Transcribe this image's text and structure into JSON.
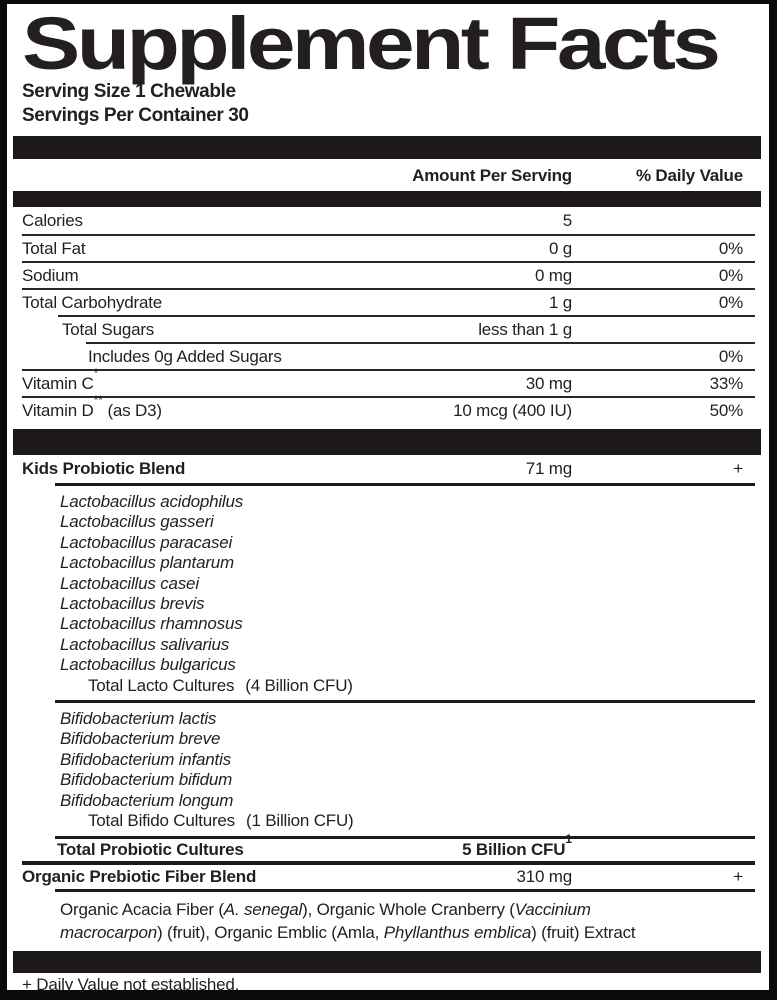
{
  "title": "Supplement Facts",
  "serving": {
    "size": "Serving Size 1 Chewable",
    "per_container": "Servings Per Container 30"
  },
  "columns": {
    "amount": "Amount Per Serving",
    "dv": "% Daily Value"
  },
  "nutrients": [
    {
      "name": "Calories",
      "amount": "5",
      "dv": "",
      "sep": "none",
      "indent": 0
    },
    {
      "name": "Total Fat",
      "amount": "0 g",
      "dv": "0%",
      "sep": "full",
      "indent": 0
    },
    {
      "name": "Sodium",
      "amount": "0 mg",
      "dv": "0%",
      "sep": "full",
      "indent": 0
    },
    {
      "name": "Total Carbohydrate",
      "amount": "1 g",
      "dv": "0%",
      "sep": "full",
      "indent": 0
    },
    {
      "name": "Total Sugars",
      "amount": "less than 1 g",
      "dv": "",
      "sep": "sub1",
      "indent": 1
    },
    {
      "name": "Includes 0g Added Sugars",
      "amount": "",
      "dv": "0%",
      "sep": "sub2",
      "indent": 2
    },
    {
      "name": "Vitamin C",
      "name_sup": "*",
      "name_after": "",
      "amount": "30 mg",
      "dv": "33%",
      "sep": "full",
      "indent": 0
    },
    {
      "name": "Vitamin D",
      "name_sup": "**",
      "name_after": " (as D3)",
      "amount": "10 mcg (400 IU)",
      "dv": "50%",
      "sep": "full",
      "indent": 0
    }
  ],
  "probiotic": {
    "name": "Kids Probiotic Blend",
    "amount": "71 mg",
    "dv": "+",
    "lacto_species": [
      "Lactobacillus acidophilus",
      "Lactobacillus gasseri",
      "Lactobacillus paracasei",
      "Lactobacillus plantarum",
      "Lactobacillus casei",
      "Lactobacillus brevis",
      "Lactobacillus rhamnosus",
      "Lactobacillus salivarius",
      "Lactobacillus bulgaricus"
    ],
    "lacto_total": {
      "label": "Total Lacto Cultures",
      "value": "(4 Billion CFU)"
    },
    "bifido_species": [
      "Bifidobacterium lactis",
      "Bifidobacterium breve",
      "Bifidobacterium infantis",
      "Bifidobacterium bifidum",
      "Bifidobacterium longum"
    ],
    "bifido_total": {
      "label": "Total Bifido Cultures",
      "value": "(1 Billion CFU)"
    },
    "total": {
      "label": "Total Probiotic Cultures",
      "value": "5 Billion CFU",
      "sup": "1"
    }
  },
  "prebiotic": {
    "name": "Organic Prebiotic Fiber Blend",
    "amount": "310 mg",
    "dv": "+",
    "description_lines": [
      [
        {
          "t": "Organic Acacia Fiber ("
        },
        {
          "t": "A. senegal",
          "i": true
        },
        {
          "t": "), Organic Whole Cranberry ("
        },
        {
          "t": "Vaccinium",
          "i": true
        }
      ],
      [
        {
          "t": "macrocarpon",
          "i": true
        },
        {
          "t": ") (fruit), Organic Emblic (Amla, "
        },
        {
          "t": "Phyllanthus emblica",
          "i": true
        },
        {
          "t": ") (fruit) Extract"
        }
      ]
    ]
  },
  "footnote": "+ Daily Value not established.",
  "colors": {
    "text": "#231f20",
    "bar": "#1d181a",
    "border": "#0a0a0a",
    "line": "#2a2527",
    "line_section": "#1f1a1c",
    "background": "#ffffff"
  }
}
